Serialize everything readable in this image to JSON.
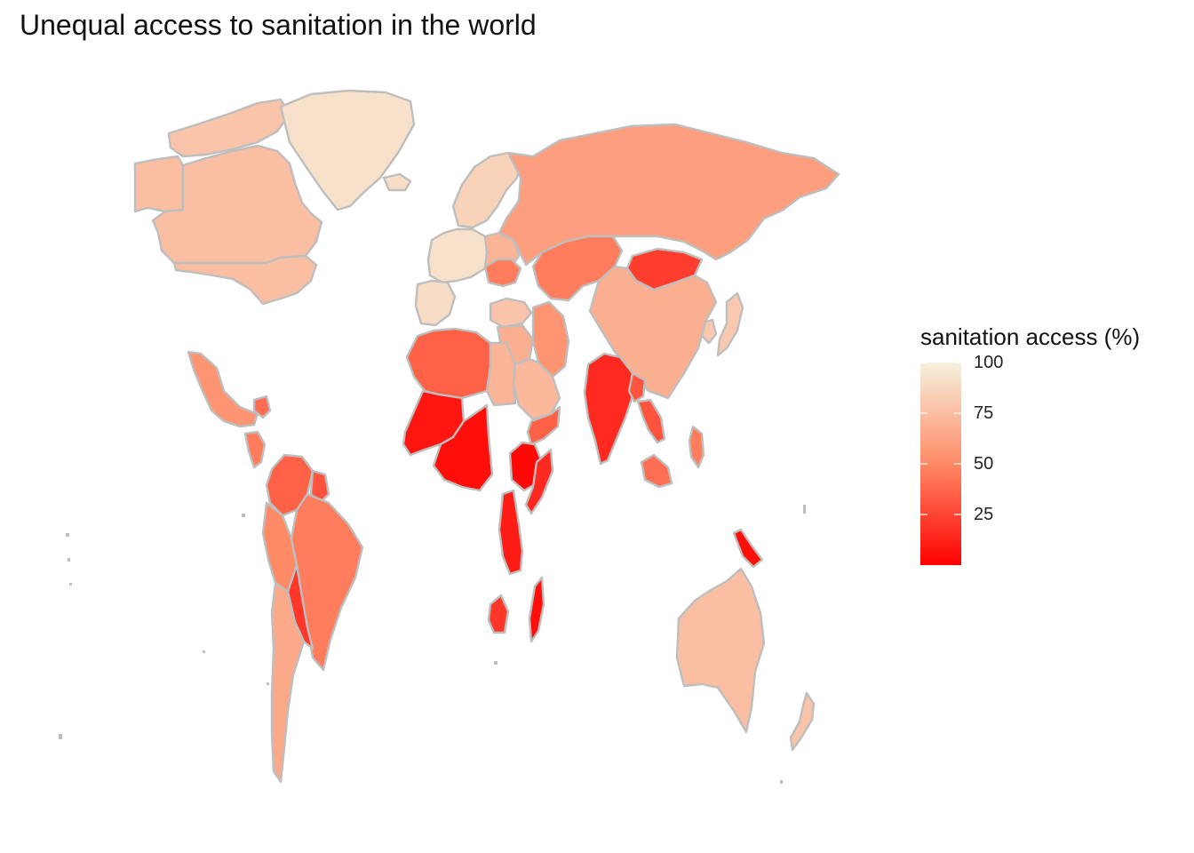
{
  "title": "Unequal access to sanitation in the world",
  "legend": {
    "title": "sanitation access (%)",
    "ticks": [
      {
        "value": 100,
        "label": "100"
      },
      {
        "value": 75,
        "label": "75"
      },
      {
        "value": 50,
        "label": "50"
      },
      {
        "value": 25,
        "label": "25"
      }
    ],
    "min": 0,
    "max": 100,
    "color_low": "#ff0000",
    "color_mid": "#ff8a66",
    "color_high": "#f5f2de"
  },
  "map_style": {
    "border_color": "#bebebe",
    "background": "#ffffff"
  },
  "regions": [
    {
      "name": "canada",
      "value": 75
    },
    {
      "name": "usa",
      "value": 75
    },
    {
      "name": "greenland",
      "value": 92
    },
    {
      "name": "alaska",
      "value": 75
    },
    {
      "name": "arctic-islands",
      "value": 78
    },
    {
      "name": "iceland",
      "value": 90
    },
    {
      "name": "scandinavia",
      "value": 85
    },
    {
      "name": "western-europe",
      "value": 92
    },
    {
      "name": "iberia",
      "value": 90
    },
    {
      "name": "eastern-europe",
      "value": 70
    },
    {
      "name": "ukraine",
      "value": 45
    },
    {
      "name": "russia",
      "value": 60
    },
    {
      "name": "kazakhstan",
      "value": 45
    },
    {
      "name": "mongolia",
      "value": 22
    },
    {
      "name": "china",
      "value": 68
    },
    {
      "name": "japan",
      "value": 80
    },
    {
      "name": "korea",
      "value": 80
    },
    {
      "name": "turkey",
      "value": 78
    },
    {
      "name": "middle-east",
      "value": 68
    },
    {
      "name": "iran",
      "value": 55
    },
    {
      "name": "arabia",
      "value": 72
    },
    {
      "name": "yemen",
      "value": 35
    },
    {
      "name": "india",
      "value": 15
    },
    {
      "name": "bangladesh",
      "value": 30
    },
    {
      "name": "southeast-asia",
      "value": 30
    },
    {
      "name": "philippines",
      "value": 45
    },
    {
      "name": "indonesia",
      "value": 40
    },
    {
      "name": "new-guinea",
      "value": 5
    },
    {
      "name": "australia",
      "value": 75
    },
    {
      "name": "new-zealand",
      "value": 78
    },
    {
      "name": "north-africa",
      "value": 35
    },
    {
      "name": "egypt",
      "value": 70
    },
    {
      "name": "west-africa",
      "value": 8
    },
    {
      "name": "central-africa",
      "value": 5
    },
    {
      "name": "east-africa",
      "value": 3
    },
    {
      "name": "somalia",
      "value": 15
    },
    {
      "name": "southern-africa",
      "value": 10
    },
    {
      "name": "south-africa",
      "value": 20
    },
    {
      "name": "madagascar",
      "value": 5
    },
    {
      "name": "mexico",
      "value": 55
    },
    {
      "name": "central-america",
      "value": 45
    },
    {
      "name": "caribbean",
      "value": 40
    },
    {
      "name": "colombia-venezuela",
      "value": 35
    },
    {
      "name": "guianas",
      "value": 30
    },
    {
      "name": "peru-andes",
      "value": 50
    },
    {
      "name": "brazil",
      "value": 45
    },
    {
      "name": "bolivia-paraguay",
      "value": 20
    },
    {
      "name": "argentina-chile",
      "value": 65
    }
  ]
}
